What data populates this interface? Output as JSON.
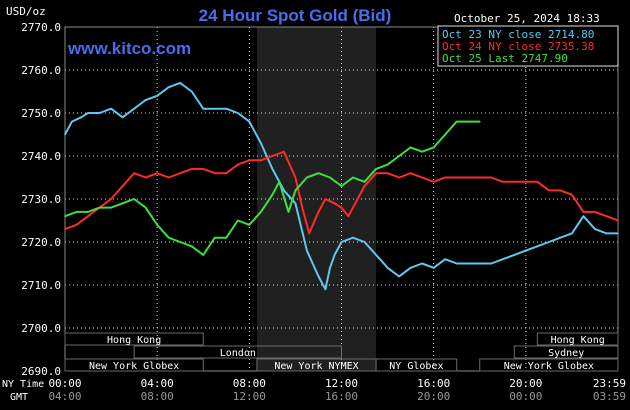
{
  "header": {
    "unit": "USD/oz",
    "title": "24 Hour Spot Gold (Bid)",
    "timestamp": "October 25, 2024 18:33",
    "site": "www.kitco.com"
  },
  "colors": {
    "title": "#4a6cf0",
    "site": "#4a6cf0",
    "series": [
      "#5ec8f0",
      "#ff2a2a",
      "#3ee03e"
    ],
    "grid": "#e0e0e0",
    "highlight": "#202020",
    "market_bar": "#6a6a6a",
    "market_text": "#ffffff"
  },
  "legend": [
    {
      "label": "Oct 23 NY close 2714.80"
    },
    {
      "label": "Oct 24 NY close 2735.38"
    },
    {
      "label": "Oct 25 Last 2747.90"
    }
  ],
  "axis": {
    "ny_time_label": "NY Time",
    "gmt_label": "GMT",
    "x_ticks_ny": [
      "00:00",
      "04:00",
      "08:00",
      "12:00",
      "16:00",
      "20:00",
      "23:59"
    ],
    "x_ticks_gmt": [
      "04:00",
      "08:00",
      "12:00",
      "16:00",
      "20:00",
      "00:00",
      "03:59"
    ],
    "y_ticks": [
      "2690.0",
      "2700.0",
      "2710.0",
      "2720.0",
      "2730.0",
      "2740.0",
      "2750.0",
      "2760.0",
      "2770.0"
    ]
  },
  "markets": [
    {
      "label": "Hong Kong",
      "row": 1,
      "start": 0,
      "end": 6
    },
    {
      "label": "London",
      "row": 2,
      "start": 3,
      "end": 12
    },
    {
      "label": "New York Globex",
      "row": 3,
      "start": 0,
      "end": 6
    },
    {
      "label": "New York NYMEX",
      "row": 3,
      "start": 8.33,
      "end": 13.5
    },
    {
      "label": "NY Globex",
      "row": 3,
      "start": 13.5,
      "end": 17
    },
    {
      "label": "Hong Kong",
      "row": 1,
      "start": 20.5,
      "end": 24
    },
    {
      "label": "Sydney",
      "row": 2,
      "start": 19.5,
      "end": 24
    },
    {
      "label": "New York Globex",
      "row": 3,
      "start": 18,
      "end": 24
    }
  ],
  "chart_data": {
    "type": "line",
    "title": "24 Hour Spot Gold (Bid)",
    "ylabel": "USD/oz",
    "xlabel": "NY Time",
    "xlim": [
      0,
      24
    ],
    "ylim": [
      2690,
      2770
    ],
    "highlight_range": [
      8.33,
      13.5
    ],
    "grid": true,
    "legend_position": "top-right",
    "series": [
      {
        "name": "Oct 23 NY close 2714.80",
        "x": [
          0,
          0.3,
          0.7,
          1,
          1.5,
          2,
          2.5,
          3,
          3.5,
          4,
          4.5,
          5,
          5.5,
          6,
          6.5,
          7,
          7.5,
          8,
          8.5,
          9,
          9.5,
          10,
          10.5,
          11,
          11.3,
          11.5,
          11.7,
          12,
          12.5,
          13,
          13.5,
          14,
          14.5,
          15,
          15.5,
          16,
          16.5,
          17,
          17.5,
          18,
          18.5,
          19,
          19.5,
          20,
          20.5,
          21,
          21.5,
          22,
          22.5,
          23,
          23.5,
          24
        ],
        "y": [
          2745,
          2748,
          2749,
          2750,
          2750,
          2751,
          2749,
          2751,
          2753,
          2754,
          2756,
          2757,
          2755,
          2751,
          2751,
          2751,
          2750,
          2748,
          2743,
          2737,
          2732,
          2729,
          2718,
          2712,
          2709,
          2714,
          2717,
          2720,
          2721,
          2720,
          2717,
          2714,
          2712,
          2714,
          2715,
          2714,
          2716,
          2715,
          2715,
          2715,
          2715,
          2716,
          2717,
          2718,
          2719,
          2720,
          2721,
          2722,
          2726,
          2723,
          2722,
          2722
        ]
      },
      {
        "name": "Oct 24 NY close 2735.38",
        "x": [
          0,
          0.5,
          1,
          1.5,
          2,
          2.5,
          3,
          3.5,
          4,
          4.5,
          5,
          5.5,
          6,
          6.5,
          7,
          7.5,
          8,
          8.5,
          9,
          9.5,
          10,
          10.3,
          10.6,
          11,
          11.3,
          11.7,
          12,
          12.3,
          12.7,
          13,
          13.5,
          14,
          14.5,
          15,
          15.5,
          16,
          16.5,
          17,
          17.5,
          18,
          18.5,
          19,
          19.5,
          20,
          20.5,
          21,
          21.5,
          22,
          22.5,
          23,
          23.5,
          24
        ],
        "y": [
          2723,
          2724,
          2726,
          2728,
          2730,
          2733,
          2736,
          2735,
          2736,
          2735,
          2736,
          2737,
          2737,
          2736,
          2736,
          2738,
          2739,
          2739,
          2740,
          2741,
          2735,
          2728,
          2722,
          2727,
          2730,
          2729,
          2728,
          2726,
          2730,
          2733,
          2736,
          2736,
          2735,
          2736,
          2735,
          2734,
          2735,
          2735,
          2735,
          2735,
          2735,
          2734,
          2734,
          2734,
          2734,
          2732,
          2732,
          2731,
          2727,
          2727,
          2726,
          2725
        ]
      },
      {
        "name": "Oct 25 Last 2747.90",
        "x": [
          0,
          0.5,
          1,
          1.5,
          2,
          2.5,
          3,
          3.5,
          4,
          4.5,
          5,
          5.5,
          6,
          6.5,
          7,
          7.5,
          8,
          8.5,
          9,
          9.3,
          9.7,
          10,
          10.5,
          11,
          11.5,
          12,
          12.5,
          13,
          13.5,
          14,
          14.5,
          15,
          15.5,
          16,
          16.5,
          17,
          17.5,
          18
        ],
        "y": [
          2726,
          2727,
          2727,
          2728,
          2728,
          2729,
          2730,
          2728,
          2724,
          2721,
          2720,
          2719,
          2717,
          2721,
          2721,
          2725,
          2724,
          2727,
          2731,
          2734,
          2727,
          2732,
          2735,
          2736,
          2735,
          2733,
          2735,
          2734,
          2737,
          2738,
          2740,
          2742,
          2741,
          2742,
          2745,
          2748,
          2748,
          2748
        ]
      }
    ]
  }
}
